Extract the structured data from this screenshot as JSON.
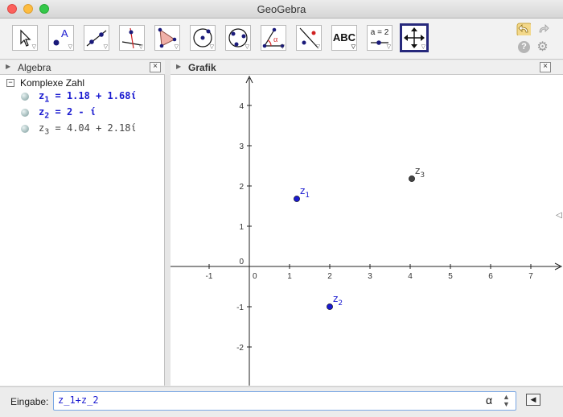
{
  "window": {
    "title": "GeoGebra"
  },
  "toolbar": {
    "tools": [
      {
        "name": "move-tool",
        "icon": "arrow-pointer-icon"
      },
      {
        "name": "point-tool",
        "icon": "point-A-icon",
        "label": "A"
      },
      {
        "name": "line-tool",
        "icon": "line-through-points-icon"
      },
      {
        "name": "perpendicular-line-tool",
        "icon": "perpendicular-line-icon"
      },
      {
        "name": "polygon-tool",
        "icon": "polygon-icon"
      },
      {
        "name": "circle-tool",
        "icon": "circle-center-point-icon"
      },
      {
        "name": "conic-tool",
        "icon": "circle-three-points-icon"
      },
      {
        "name": "angle-tool",
        "icon": "angle-icon",
        "label": "α"
      },
      {
        "name": "reflect-tool",
        "icon": "reflect-line-icon"
      },
      {
        "name": "text-tool",
        "icon": "text-icon",
        "label": "ABC"
      },
      {
        "name": "slider-tool",
        "icon": "slider-icon",
        "label": "a = 2"
      },
      {
        "name": "move-graphics-tool",
        "icon": "move-cross-icon",
        "active": true
      }
    ],
    "help_label": "?"
  },
  "algebra_panel": {
    "title": "Algebra",
    "group": "Komplexe Zahl",
    "rows": [
      {
        "name": "z",
        "sub": "1",
        "expr": "= 1.18 + 1.68ί",
        "style": "blue"
      },
      {
        "name": "z",
        "sub": "2",
        "expr": "= 2 - ί",
        "style": "blue"
      },
      {
        "name": "z",
        "sub": "3",
        "expr": "= 4.04 + 2.18ί",
        "style": "gray"
      }
    ]
  },
  "graphics_panel": {
    "title": "Grafik",
    "x_ticks": [
      "-1",
      "0",
      "1",
      "2",
      "3",
      "4",
      "5",
      "6",
      "7"
    ],
    "y_ticks": [
      "4",
      "3",
      "2",
      "1",
      "0",
      "-1",
      "-2"
    ],
    "points": [
      {
        "label": "z",
        "sub": "1",
        "x": 1.18,
        "y": 1.68,
        "color": "#1a1ad0"
      },
      {
        "label": "z",
        "sub": "2",
        "x": 2,
        "y": -1,
        "color": "#1a1ad0"
      },
      {
        "label": "z",
        "sub": "3",
        "x": 4.04,
        "y": 2.18,
        "color": "#444444"
      }
    ]
  },
  "input_bar": {
    "label": "Eingabe:",
    "value": "z_1+z_2",
    "alpha": "α"
  },
  "colors": {
    "accent": "#1a1ad0",
    "active_tool_border": "#27297c"
  }
}
